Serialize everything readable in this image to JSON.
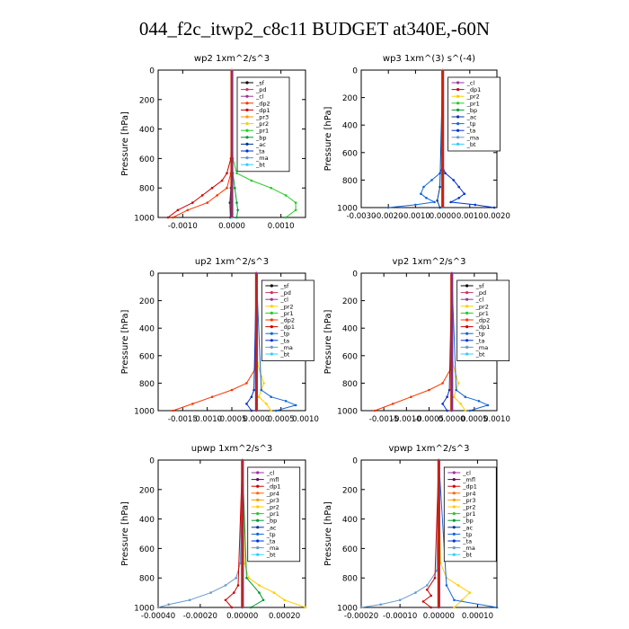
{
  "title": "044_f2c_itwp2_c8c11  BUDGET at340E,-60N",
  "ylabel": "Pressure  [hPa]",
  "colors": {
    "bt": "#33ccff",
    "ma": "#6699cc",
    "ta": "#0033cc",
    "tp": "#1166dd",
    "ac": "#003399",
    "bp": "#009933",
    "pr1": "#22cc22",
    "pr2": "#ffcc00",
    "pr3": "#ff9900",
    "pr4": "#ff6600",
    "dp1": "#cc0000",
    "dp2": "#ff3300",
    "mfl": "#660066",
    "cl": "#993399",
    "pd": "#cc3366",
    "sf": "#000000"
  },
  "chart_data": [
    {
      "type": "line",
      "title": "wp2   1xm^2/s^3",
      "ylabel": "Pressure  [hPa]",
      "ylim": [
        1000,
        0
      ],
      "xlim": [
        -0.0015,
        0.0015
      ],
      "xticks": [
        -0.001,
        0.0,
        0.001
      ],
      "xtick_labels": [
        "-0.0010",
        "0.0000",
        "0.0010"
      ],
      "yticks": [
        0,
        200,
        400,
        600,
        800,
        1000
      ],
      "legend": [
        "_sf",
        "_pd",
        "_cl",
        "_dp2",
        "_dp1",
        "_pr3",
        "_pr2",
        "_pr1",
        "_bp",
        "_ac",
        "_ta",
        "_ma",
        "_bt"
      ],
      "series": [
        {
          "name": "_pr1",
          "color": "#22cc22",
          "p": [
            0,
            600,
            700,
            750,
            800,
            850,
            900,
            950,
            1000
          ],
          "v": [
            0,
            2e-05,
            0.0001,
            0.0004,
            0.0008,
            0.0011,
            0.0013,
            0.0013,
            0.0011
          ]
        },
        {
          "name": "_dp1",
          "color": "#cc0000",
          "p": [
            0,
            600,
            700,
            750,
            800,
            850,
            900,
            950,
            1000
          ],
          "v": [
            0,
            -2e-05,
            -0.0001,
            -0.0002,
            -0.0004,
            -0.0006,
            -0.0008,
            -0.0011,
            -0.0013
          ]
        },
        {
          "name": "_dp2",
          "color": "#ff3300",
          "p": [
            0,
            700,
            800,
            850,
            900,
            950,
            1000
          ],
          "v": [
            0,
            -2e-05,
            -0.0001,
            -0.0003,
            -0.0005,
            -0.0009,
            -0.0012
          ]
        },
        {
          "name": "_bp",
          "color": "#009933",
          "p": [
            0,
            700,
            800,
            900,
            950,
            1000
          ],
          "v": [
            0,
            2e-05,
            6e-05,
            0.0001,
            0.00012,
            0.0001
          ]
        },
        {
          "name": "_ac",
          "color": "#003399",
          "p": [
            0,
            800,
            900,
            1000
          ],
          "v": [
            0,
            -2e-05,
            -4e-05,
            -3e-05
          ]
        },
        {
          "name": "_cl",
          "color": "#993399",
          "p": [
            0,
            1000
          ],
          "v": [
            0,
            0
          ]
        },
        {
          "name": "_bt",
          "color": "#33ccff",
          "p": [
            0,
            1000
          ],
          "v": [
            0,
            0
          ]
        }
      ]
    },
    {
      "type": "line",
      "title": "wp3   1xm^(3) s^(-4)",
      "ylabel": "Pressure  [hPa]",
      "ylim": [
        1000,
        0
      ],
      "xlim": [
        -0.003,
        0.002
      ],
      "xticks": [
        -0.003,
        -0.002,
        -0.001,
        0.0,
        0.001,
        0.002
      ],
      "xtick_labels": [
        "-0.0030",
        "-0.0020",
        "-0.0010",
        "0.0000",
        "0.0010",
        "0.0020"
      ],
      "yticks": [
        0,
        200,
        400,
        600,
        800,
        1000
      ],
      "legend": [
        "_cl",
        "_dp1",
        "_pr2",
        "_pr1",
        "_bp",
        "_ac",
        "_tp",
        "_ta",
        "_ma",
        "_bt"
      ],
      "series": [
        {
          "name": "_tp",
          "color": "#1166dd",
          "p": [
            0,
            700,
            750,
            800,
            850,
            900,
            930,
            960,
            980,
            1000
          ],
          "v": [
            0,
            0,
            -0.0001,
            -0.0004,
            -0.0007,
            -0.0008,
            -0.0006,
            -0.0003,
            -0.001,
            -0.002
          ]
        },
        {
          "name": "_ta",
          "color": "#0033cc",
          "p": [
            0,
            700,
            750,
            800,
            850,
            900,
            930,
            960,
            980,
            1000
          ],
          "v": [
            0,
            0,
            0.0001,
            0.0004,
            0.0006,
            0.0008,
            0.0006,
            0.0003,
            0.0012,
            0.0019
          ]
        },
        {
          "name": "_ac",
          "color": "#003399",
          "p": [
            0,
            850,
            950,
            1000
          ],
          "v": [
            0,
            -0.0001,
            -0.0002,
            -0.0001
          ]
        },
        {
          "name": "_dp1",
          "color": "#cc0000",
          "p": [
            0,
            1000
          ],
          "v": [
            0,
            0
          ]
        },
        {
          "name": "_bt",
          "color": "#33ccff",
          "p": [
            0,
            1000
          ],
          "v": [
            0,
            0
          ]
        }
      ]
    },
    {
      "type": "line",
      "title": "up2   1xm^2/s^3",
      "ylabel": "Pressure  [hPa]",
      "ylim": [
        1000,
        0
      ],
      "xlim": [
        -0.002,
        0.001
      ],
      "xticks": [
        -0.0015,
        -0.001,
        -0.0005,
        0.0,
        0.0005,
        0.001
      ],
      "xtick_labels": [
        "-0.0015",
        "-0.0010",
        "-0.0005",
        "0.0000",
        "0.0005",
        "0.0010"
      ],
      "yticks": [
        0,
        200,
        400,
        600,
        800,
        1000
      ],
      "legend": [
        "_sf",
        "_pd",
        "_cl",
        "_pr2",
        "_pr1",
        "_dp2",
        "_dp1",
        "_tp",
        "_ta",
        "_ma",
        "_bt"
      ],
      "series": [
        {
          "name": "_dp2",
          "color": "#ff3300",
          "p": [
            0,
            700,
            800,
            850,
            900,
            950,
            1000
          ],
          "v": [
            0,
            -3e-05,
            -0.0002,
            -0.0005,
            -0.0009,
            -0.0013,
            -0.0017
          ]
        },
        {
          "name": "_pr2",
          "color": "#ffcc00",
          "p": [
            0,
            650,
            750,
            800,
            850,
            900,
            950,
            1000
          ],
          "v": [
            0,
            2e-05,
            0.0001,
            0.00015,
            0.0001,
            5e-05,
            0.0002,
            0.0003
          ]
        },
        {
          "name": "_tp",
          "color": "#1166dd",
          "p": [
            0,
            850,
            900,
            930,
            960,
            1000
          ],
          "v": [
            0,
            0.0001,
            0.0003,
            0.0006,
            0.0008,
            0.0004
          ]
        },
        {
          "name": "_ta",
          "color": "#0033cc",
          "p": [
            0,
            850,
            900,
            950,
            1000
          ],
          "v": [
            0,
            -5e-05,
            -0.0001,
            -0.0002,
            -0.0001
          ]
        },
        {
          "name": "_bt",
          "color": "#33ccff",
          "p": [
            0,
            1000
          ],
          "v": [
            0,
            0
          ]
        },
        {
          "name": "_cl",
          "color": "#993399",
          "p": [
            0,
            1000
          ],
          "v": [
            0,
            0
          ]
        }
      ]
    },
    {
      "type": "line",
      "title": "vp2   1xm^2/s^3",
      "ylabel": "Pressure  [hPa]",
      "ylim": [
        1000,
        0
      ],
      "xlim": [
        -0.002,
        0.001
      ],
      "xticks": [
        -0.0015,
        -0.001,
        -0.0005,
        0.0,
        0.0005,
        0.001
      ],
      "xtick_labels": [
        "-0.0015",
        "-0.0010",
        "-0.0005",
        "0.0000",
        "0.0005",
        "0.0010"
      ],
      "yticks": [
        0,
        200,
        400,
        600,
        800,
        1000
      ],
      "legend": [
        "_sf",
        "_pd",
        "_cl",
        "_pr2",
        "_pr1",
        "_dp2",
        "_dp1",
        "_tp",
        "_ta",
        "_ma",
        "_bt"
      ],
      "series": [
        {
          "name": "_dp2",
          "color": "#ff3300",
          "p": [
            0,
            700,
            800,
            850,
            900,
            950,
            1000
          ],
          "v": [
            0,
            -3e-05,
            -0.0002,
            -0.0005,
            -0.0009,
            -0.0013,
            -0.0017
          ]
        },
        {
          "name": "_pr2",
          "color": "#ffcc00",
          "p": [
            0,
            650,
            750,
            800,
            850,
            900,
            950,
            1000
          ],
          "v": [
            0,
            2e-05,
            0.0001,
            0.00015,
            0.0001,
            5e-05,
            0.0002,
            0.0003
          ]
        },
        {
          "name": "_tp",
          "color": "#1166dd",
          "p": [
            0,
            850,
            900,
            930,
            960,
            1000
          ],
          "v": [
            0,
            0.0001,
            0.0003,
            0.0006,
            0.0008,
            0.0004
          ]
        },
        {
          "name": "_ta",
          "color": "#0033cc",
          "p": [
            0,
            850,
            900,
            950,
            1000
          ],
          "v": [
            0,
            -5e-05,
            -0.0001,
            -0.0002,
            -0.0001
          ]
        },
        {
          "name": "_bt",
          "color": "#33ccff",
          "p": [
            0,
            1000
          ],
          "v": [
            0,
            0
          ]
        },
        {
          "name": "_cl",
          "color": "#993399",
          "p": [
            0,
            1000
          ],
          "v": [
            0,
            0
          ]
        }
      ]
    },
    {
      "type": "line",
      "title": "upwp   1xm^2/s^3",
      "ylabel": "Pressure  [hPa]",
      "ylim": [
        1000,
        0
      ],
      "xlim": [
        -0.0004,
        0.0003
      ],
      "xticks": [
        -0.0004,
        -0.0002,
        0.0,
        0.0002
      ],
      "xtick_labels": [
        "-0.00040",
        "-0.00020",
        "0.00000",
        "0.00020"
      ],
      "yticks": [
        0,
        200,
        400,
        600,
        800,
        1000
      ],
      "legend": [
        "_cl",
        "_mfl",
        "_dp1",
        "_pr4",
        "_pr3",
        "_pr2",
        "_pr1",
        "_bp",
        "_ac",
        "_tp",
        "_ta",
        "_ma",
        "_bt"
      ],
      "series": [
        {
          "name": "_ma",
          "color": "#6699cc",
          "p": [
            0,
            700,
            800,
            850,
            900,
            950,
            980,
            1000
          ],
          "v": [
            0,
            -1e-05,
            -3e-05,
            -8e-05,
            -0.00015,
            -0.00025,
            -0.00035,
            -0.0004
          ]
        },
        {
          "name": "_pr2",
          "color": "#ffcc00",
          "p": [
            0,
            700,
            800,
            850,
            900,
            950,
            1000
          ],
          "v": [
            0,
            1e-05,
            3e-05,
            8e-05,
            0.00015,
            0.0002,
            0.0003
          ]
        },
        {
          "name": "_bp",
          "color": "#009933",
          "p": [
            0,
            800,
            900,
            950,
            1000
          ],
          "v": [
            0,
            2e-05,
            8e-05,
            0.0001,
            4e-05
          ]
        },
        {
          "name": "_dp1",
          "color": "#cc0000",
          "p": [
            0,
            850,
            900,
            950,
            1000
          ],
          "v": [
            0,
            -2e-05,
            -4e-05,
            -8e-05,
            -5e-05
          ]
        },
        {
          "name": "_bt",
          "color": "#33ccff",
          "p": [
            0,
            1000
          ],
          "v": [
            0,
            0
          ]
        },
        {
          "name": "_cl",
          "color": "#993399",
          "p": [
            0,
            1000
          ],
          "v": [
            0,
            0
          ]
        }
      ]
    },
    {
      "type": "line",
      "title": "vpwp   1xm^2/s^3",
      "ylabel": "Pressure  [hPa]",
      "ylim": [
        1000,
        0
      ],
      "xlim": [
        -0.0002,
        0.00015
      ],
      "xticks": [
        -0.0002,
        -0.0001,
        0.0,
        0.0001
      ],
      "xtick_labels": [
        "-0.00020",
        "-0.00010",
        "0.00000",
        "0.00010"
      ],
      "yticks": [
        0,
        200,
        400,
        600,
        800,
        1000
      ],
      "legend": [
        "_cl",
        "_mfl",
        "_dp1",
        "_pr4",
        "_pr3",
        "_pr2",
        "_pr1",
        "_bp",
        "_ac",
        "_tp",
        "_ta",
        "_ma",
        "_bt"
      ],
      "series": [
        {
          "name": "_ma",
          "color": "#6699cc",
          "p": [
            0,
            750,
            850,
            900,
            950,
            980,
            1000
          ],
          "v": [
            0,
            -5e-06,
            -3e-05,
            -6e-05,
            -0.0001,
            -0.00015,
            -0.0002
          ]
        },
        {
          "name": "_pr2",
          "color": "#ffcc00",
          "p": [
            0,
            700,
            800,
            850,
            900,
            950,
            1000
          ],
          "v": [
            0,
            5e-06,
            2e-05,
            5e-05,
            8e-05,
            6e-05,
            4e-05
          ]
        },
        {
          "name": "_dp1",
          "color": "#cc0000",
          "p": [
            0,
            800,
            880,
            920,
            960,
            1000
          ],
          "v": [
            0,
            -1e-05,
            -3e-05,
            -2e-05,
            -4e-05,
            -2e-05
          ]
        },
        {
          "name": "_tp",
          "color": "#1166dd",
          "p": [
            0,
            850,
            950,
            1000
          ],
          "v": [
            0,
            2e-05,
            4e-05,
            0.00015
          ]
        },
        {
          "name": "_bt",
          "color": "#33ccff",
          "p": [
            0,
            1000
          ],
          "v": [
            0,
            0
          ]
        },
        {
          "name": "_cl",
          "color": "#993399",
          "p": [
            0,
            1000
          ],
          "v": [
            0,
            0
          ]
        }
      ]
    }
  ]
}
